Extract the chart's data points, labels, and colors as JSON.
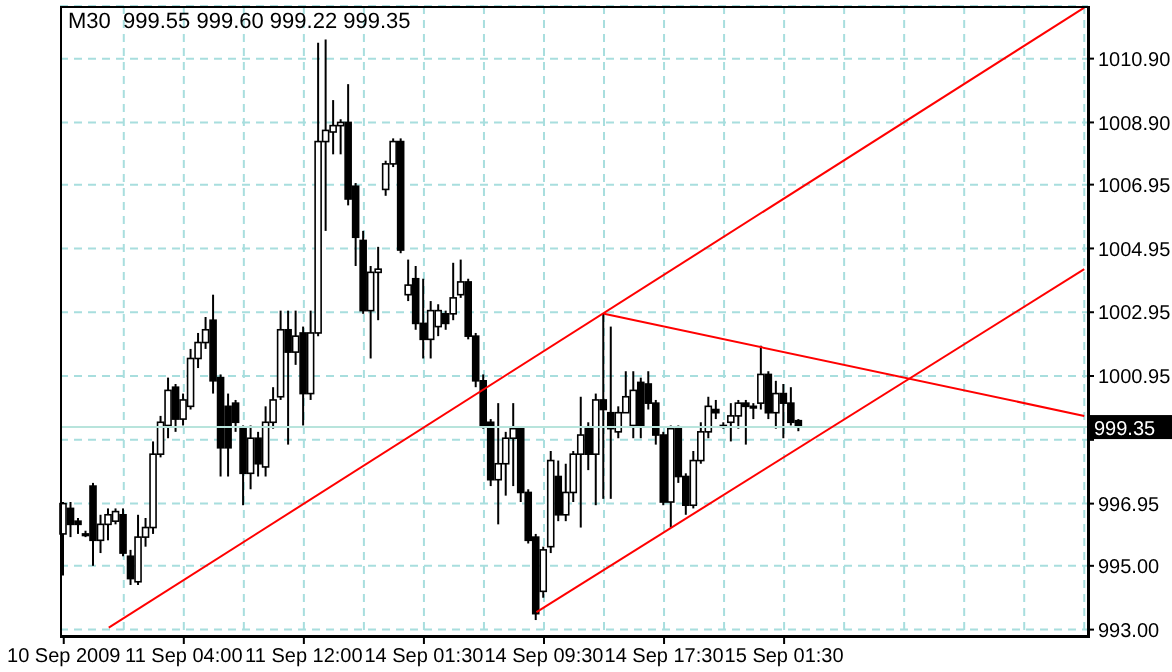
{
  "chart_data": {
    "type": "candlestick",
    "title": "M30  999.55 999.60 999.22 999.35",
    "categories": [
      "10 Sep 2009",
      null,
      null,
      null,
      null,
      null,
      null,
      null,
      null,
      null,
      null,
      null,
      null,
      null,
      null,
      null,
      "11 Sep 04:00",
      null,
      null,
      null,
      null,
      null,
      null,
      null,
      null,
      null,
      null,
      null,
      null,
      null,
      null,
      null,
      "11 Sep 12:00",
      null,
      null,
      null,
      null,
      null,
      null,
      null,
      null,
      null,
      null,
      null,
      null,
      null,
      null,
      null,
      "14 Sep 01:30",
      null,
      null,
      null,
      null,
      null,
      null,
      null,
      null,
      null,
      null,
      null,
      null,
      null,
      null,
      null,
      "14 Sep 09:30",
      null,
      null,
      null,
      null,
      null,
      null,
      null,
      null,
      null,
      null,
      null,
      null,
      null,
      null,
      null,
      "14 Sep 17:30",
      null,
      null,
      null,
      null,
      null,
      null,
      null,
      null,
      null,
      null,
      null,
      null,
      null,
      null,
      null,
      "15 Sep 01:30",
      null,
      null,
      null,
      null,
      null,
      null,
      null,
      null,
      null,
      null,
      null,
      null,
      null,
      null,
      null,
      null,
      null,
      null,
      null,
      null,
      null,
      null,
      null,
      null,
      null,
      null,
      null,
      null,
      null,
      null,
      null,
      null,
      null,
      null,
      null,
      null,
      null,
      null,
      null,
      null
    ],
    "ohlc": [
      [
        996.0,
        997.0,
        994.7,
        996.95
      ],
      [
        996.8,
        997.0,
        995.9,
        996.3
      ],
      [
        996.4,
        996.5,
        996.0,
        996.3
      ],
      [
        996.0,
        996.1,
        995.9,
        996.0
      ],
      [
        997.5,
        997.6,
        995.0,
        995.8
      ],
      [
        995.8,
        996.6,
        995.4,
        996.3
      ],
      [
        996.3,
        996.8,
        995.8,
        996.6
      ],
      [
        996.4,
        996.8,
        996.3,
        996.7
      ],
      [
        996.6,
        996.8,
        995.3,
        995.4
      ],
      [
        995.3,
        995.5,
        994.4,
        994.6
      ],
      [
        994.5,
        996.6,
        994.4,
        995.9
      ],
      [
        995.9,
        996.5,
        995.6,
        996.2
      ],
      [
        996.2,
        998.9,
        996.0,
        998.5
      ],
      [
        998.5,
        999.7,
        998.4,
        999.5
      ],
      [
        999.4,
        1000.9,
        999.0,
        1000.5
      ],
      [
        1000.6,
        1000.7,
        999.2,
        999.6
      ],
      [
        999.6,
        1000.4,
        999.4,
        1000.2
      ],
      [
        1000.0,
        1001.8,
        999.9,
        1001.5
      ],
      [
        1001.5,
        1002.3,
        1001.2,
        1002.0
      ],
      [
        1002.0,
        1002.8,
        1001.8,
        1002.4
      ],
      [
        1002.7,
        1003.5,
        1000.4,
        1000.8
      ],
      [
        1000.9,
        1001.0,
        997.8,
        998.7
      ],
      [
        1000.0,
        1000.4,
        997.8,
        998.7
      ],
      [
        1000.1,
        1000.2,
        999.2,
        999.5
      ],
      [
        999.3,
        999.4,
        996.9,
        997.9
      ],
      [
        997.9,
        999.4,
        997.4,
        999.0
      ],
      [
        999.0,
        999.2,
        997.8,
        998.2
      ],
      [
        998.1,
        1000.0,
        997.8,
        999.5
      ],
      [
        999.5,
        1000.6,
        999.3,
        1000.2
      ],
      [
        1000.3,
        1003.0,
        1000.2,
        1002.4
      ],
      [
        1002.4,
        1003.0,
        998.8,
        1001.7
      ],
      [
        1001.7,
        1003.0,
        1001.3,
        1002.2
      ],
      [
        1002.3,
        1002.5,
        999.4,
        1000.4
      ],
      [
        1000.4,
        1003.0,
        1000.2,
        1002.3
      ],
      [
        1002.3,
        1011.4,
        1002.2,
        1008.3
      ],
      [
        1008.3,
        1011.5,
        1005.5,
        1008.65
      ],
      [
        1008.6,
        1009.6,
        1007.9,
        1008.8
      ],
      [
        1008.8,
        1009.0,
        1007.9,
        1008.9
      ],
      [
        1008.9,
        1010.1,
        1006.3,
        1006.5
      ],
      [
        1006.9,
        1007.0,
        1004.4,
        1005.3
      ],
      [
        1005.2,
        1005.5,
        1002.9,
        1003.0
      ],
      [
        1003.0,
        1004.4,
        1001.5,
        1004.2
      ],
      [
        1004.2,
        1005.0,
        1002.7,
        1004.3
      ],
      [
        1006.8,
        1007.7,
        1006.6,
        1007.6
      ],
      [
        1007.6,
        1008.4,
        1007.5,
        1008.3
      ],
      [
        1008.3,
        1008.4,
        1004.8,
        1004.9
      ],
      [
        1003.5,
        1004.6,
        1003.3,
        1003.8
      ],
      [
        1004.0,
        1004.4,
        1002.4,
        1002.6
      ],
      [
        1002.6,
        1004.0,
        1001.5,
        1002.1
      ],
      [
        1002.1,
        1003.3,
        1001.5,
        1003.0
      ],
      [
        1002.5,
        1003.2,
        1002.2,
        1003.0
      ],
      [
        1002.9,
        1003.0,
        1002.4,
        1002.6
      ],
      [
        1002.9,
        1004.5,
        1002.7,
        1003.4
      ],
      [
        1003.5,
        1004.6,
        1003.4,
        1003.9
      ],
      [
        1003.9,
        1004.0,
        1002.1,
        1002.2
      ],
      [
        1002.2,
        1002.3,
        1000.6,
        1000.8
      ],
      [
        1000.8,
        1001.0,
        999.3,
        999.4
      ],
      [
        999.5,
        999.6,
        997.5,
        997.7
      ],
      [
        997.7,
        1000.1,
        996.3,
        998.2
      ],
      [
        998.2,
        999.2,
        997.2,
        999.0
      ],
      [
        999.0,
        1000.1,
        997.5,
        999.3
      ],
      [
        999.3,
        999.3,
        997.0,
        997.3
      ],
      [
        997.3,
        997.4,
        995.7,
        995.8
      ],
      [
        995.9,
        996.0,
        993.3,
        993.5
      ],
      [
        994.2,
        995.6,
        994.0,
        995.5
      ],
      [
        995.6,
        998.6,
        995.4,
        998.3
      ],
      [
        997.8,
        998.3,
        996.4,
        996.6
      ],
      [
        996.6,
        998.2,
        996.4,
        997.3
      ],
      [
        997.3,
        998.6,
        997.0,
        998.5
      ],
      [
        998.5,
        1000.3,
        996.2,
        999.1
      ],
      [
        999.3,
        999.5,
        998.0,
        998.5
      ],
      [
        998.5,
        1000.4,
        996.9,
        1000.2
      ],
      [
        1000.2,
        1002.9,
        997.1,
        999.9
      ],
      [
        999.8,
        1002.5,
        997.1,
        999.3
      ],
      [
        999.2,
        1000.0,
        999.0,
        999.8
      ],
      [
        999.8,
        1001.1,
        999.8,
        1000.3
      ],
      [
        999.4,
        1001.1,
        999.0,
        1000.5
      ],
      [
        1000.75,
        1000.9,
        999.0,
        999.4
      ],
      [
        1000.7,
        1001.1,
        999.9,
        1000.1
      ],
      [
        1000.1,
        1000.2,
        998.8,
        999.1
      ],
      [
        999.1,
        999.2,
        996.9,
        997.0
      ],
      [
        997.0,
        999.4,
        996.2,
        999.3
      ],
      [
        999.3,
        999.4,
        997.6,
        997.8
      ],
      [
        997.8,
        997.9,
        996.6,
        996.9
      ],
      [
        996.9,
        998.6,
        996.8,
        998.3
      ],
      [
        998.3,
        999.5,
        998.2,
        999.2
      ],
      [
        999.2,
        1000.3,
        999.0,
        1000.0
      ],
      [
        999.9,
        1000.2,
        999.6,
        999.8
      ],
      [
        999.4,
        999.5,
        999.3,
        999.4
      ],
      [
        999.5,
        1000.1,
        998.9,
        999.7
      ],
      [
        999.7,
        1000.2,
        999.3,
        1000.1
      ],
      [
        1000.1,
        1000.2,
        998.8,
        1000.0
      ],
      [
        1000.0,
        1000.1,
        999.6,
        999.95
      ],
      [
        1000.1,
        1001.9,
        999.9,
        1001.0
      ],
      [
        1001.0,
        1001.1,
        999.6,
        999.8
      ],
      [
        999.8,
        1000.8,
        999.3,
        1000.4
      ],
      [
        1000.4,
        1000.7,
        999.0,
        1000.1
      ],
      [
        1000.1,
        1000.6,
        999.4,
        999.5
      ],
      [
        999.55,
        999.6,
        999.22,
        999.35
      ],
      null,
      null,
      null,
      null,
      null,
      null,
      null,
      null,
      null,
      null,
      null,
      null,
      null,
      null,
      null,
      null,
      null,
      null,
      null,
      null,
      null,
      null,
      null,
      null,
      null,
      null,
      null,
      null,
      null,
      null,
      null,
      null,
      null,
      null,
      null,
      null,
      null,
      null
    ],
    "series": [
      {
        "type": "line",
        "color": "#ff0000",
        "values": [
          null,
          null,
          null,
          null,
          null,
          null,
          993.06,
          null,
          null,
          null,
          null,
          null,
          null,
          null,
          null,
          null,
          null,
          null,
          null,
          null,
          null,
          null,
          null,
          null,
          null,
          null,
          null,
          null,
          null,
          null,
          null,
          null,
          null,
          null,
          null,
          null,
          null,
          null,
          null,
          null,
          null,
          null,
          null,
          null,
          null,
          null,
          null,
          null,
          null,
          null,
          null,
          null,
          null,
          null,
          null,
          null,
          null,
          null,
          null,
          null,
          null,
          null,
          null,
          null,
          null,
          null,
          null,
          null,
          null,
          null,
          null,
          null,
          null,
          null,
          null,
          null,
          null,
          null,
          null,
          null,
          null,
          null,
          null,
          null,
          null,
          null,
          null,
          null,
          null,
          null,
          null,
          null,
          null,
          null,
          null,
          null,
          null,
          null,
          null,
          null,
          null,
          null,
          null,
          null,
          null,
          null,
          null,
          null,
          null,
          null,
          null,
          null,
          null,
          null,
          null,
          null,
          null,
          null,
          null,
          null,
          null,
          null,
          null,
          null,
          null,
          null,
          null,
          null,
          null,
          null,
          null,
          null,
          null,
          null,
          null,
          null,
          1012.5
        ]
      },
      {
        "type": "line",
        "color": "#ff0000",
        "values": [
          null,
          null,
          null,
          null,
          null,
          null,
          null,
          null,
          null,
          null,
          null,
          null,
          null,
          null,
          null,
          null,
          null,
          null,
          null,
          null,
          null,
          null,
          null,
          null,
          null,
          null,
          null,
          null,
          null,
          null,
          null,
          null,
          null,
          null,
          null,
          null,
          null,
          null,
          null,
          null,
          null,
          null,
          null,
          null,
          null,
          null,
          null,
          null,
          null,
          null,
          null,
          null,
          null,
          null,
          null,
          null,
          null,
          null,
          null,
          null,
          null,
          null,
          null,
          993.55,
          null,
          null,
          null,
          null,
          null,
          null,
          null,
          null,
          null,
          null,
          null,
          null,
          null,
          null,
          null,
          null,
          null,
          null,
          null,
          null,
          null,
          null,
          null,
          null,
          null,
          null,
          null,
          null,
          null,
          null,
          null,
          null,
          null,
          null,
          null,
          null,
          null,
          null,
          null,
          null,
          null,
          null,
          null,
          null,
          null,
          null,
          null,
          null,
          null,
          null,
          null,
          null,
          null,
          null,
          null,
          null,
          null,
          null,
          null,
          null,
          null,
          null,
          null,
          null,
          null,
          null,
          null,
          null,
          null,
          null,
          null,
          null,
          1004.3
        ]
      },
      {
        "type": "line",
        "color": "#ff0000",
        "values": [
          null,
          null,
          null,
          null,
          null,
          null,
          null,
          null,
          null,
          null,
          null,
          null,
          null,
          null,
          null,
          null,
          null,
          null,
          null,
          null,
          null,
          null,
          null,
          null,
          null,
          null,
          null,
          null,
          null,
          null,
          null,
          null,
          null,
          null,
          null,
          null,
          null,
          null,
          null,
          null,
          null,
          null,
          null,
          null,
          null,
          null,
          null,
          null,
          null,
          null,
          null,
          null,
          null,
          null,
          null,
          null,
          null,
          null,
          null,
          null,
          null,
          null,
          null,
          null,
          null,
          null,
          null,
          null,
          null,
          null,
          null,
          null,
          1002.9,
          null,
          null,
          null,
          null,
          null,
          null,
          null,
          null,
          null,
          null,
          null,
          null,
          null,
          null,
          null,
          null,
          null,
          null,
          null,
          null,
          null,
          null,
          null,
          null,
          null,
          null,
          null,
          null,
          null,
          null,
          null,
          null,
          null,
          null,
          null,
          null,
          null,
          null,
          null,
          null,
          null,
          null,
          null,
          null,
          null,
          null,
          null,
          null,
          null,
          null,
          null,
          null,
          null,
          null,
          null,
          null,
          null,
          null,
          null,
          null,
          null,
          null,
          null,
          999.7
        ]
      }
    ],
    "ylim": [
      992.8,
      1012.55
    ],
    "yticks": [
      {
        "value": 993,
        "label": "993.00"
      },
      {
        "value": 995,
        "label": "995.00"
      },
      {
        "value": 996.95,
        "label": "996.95"
      },
      {
        "value": 998.95,
        "label": null
      },
      {
        "value": 1000.95,
        "label": "1000.95"
      },
      {
        "value": 1002.95,
        "label": "1002.95"
      },
      {
        "value": 1004.95,
        "label": "1004.95"
      },
      {
        "value": 1006.95,
        "label": "1006.95"
      },
      {
        "value": 1008.9,
        "label": "1008.90"
      },
      {
        "value": 1010.9,
        "label": "1010.90"
      }
    ],
    "ref_lines": [
      {
        "axis": "y",
        "value": 999.35,
        "label": "999.35",
        "color": "#b8e4dc"
      }
    ],
    "grid": true
  }
}
